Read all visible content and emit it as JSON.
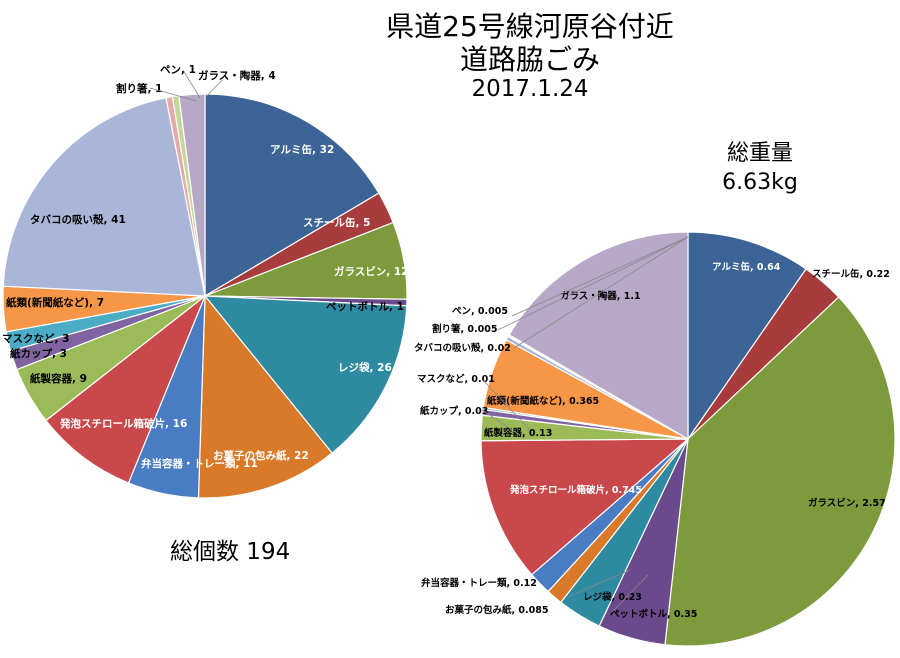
{
  "title": {
    "line1": "県道25号線河原谷付近",
    "line2": "道路脇ごみ",
    "date": "2017.1.24"
  },
  "total_count_label": "総個数 194",
  "total_weight": {
    "label": "総重量",
    "value": "6.63kg"
  },
  "chart_data": [
    {
      "type": "pie",
      "title": "総個数 194",
      "slices": [
        {
          "label": "アルミ缶",
          "value": 32,
          "color": "#3c6496",
          "text": "アルミ缶, 32"
        },
        {
          "label": "スチール缶",
          "value": 5,
          "color": "#a83c3c",
          "text": "スチール缶, 5"
        },
        {
          "label": "ガラスビン",
          "value": 12,
          "color": "#7d9a3c",
          "text": "ガラスビン, 12"
        },
        {
          "label": "ペットボトル",
          "value": 1,
          "color": "#6a4a8c",
          "text": "ペットボトル, 1"
        },
        {
          "label": "レジ袋",
          "value": 26,
          "color": "#2e8aa0",
          "text": "レジ袋, 26"
        },
        {
          "label": "お菓子の包み紙",
          "value": 22,
          "color": "#d97a2a",
          "text": "お菓子の包み紙, 22"
        },
        {
          "label": "弁当容器・トレー類",
          "value": 11,
          "color": "#4a7cc4",
          "text": "弁当容器・トレー類, 11"
        },
        {
          "label": "発泡スチロール箱破片",
          "value": 16,
          "color": "#c8484c",
          "text": "発泡スチロール箱破片, 16"
        },
        {
          "label": "紙製容器",
          "value": 9,
          "color": "#9bbb59",
          "text": "紙製容器, 9"
        },
        {
          "label": "紙カップ",
          "value": 3,
          "color": "#8064a2",
          "text": "紙カップ, 3"
        },
        {
          "label": "マスクなど",
          "value": 3,
          "color": "#4bacc6",
          "text": "マスクなど, 3"
        },
        {
          "label": "紙類(新聞紙など)",
          "value": 7,
          "color": "#f79646",
          "text": "紙類(新聞紙など), 7"
        },
        {
          "label": "タバコの吸い殻",
          "value": 41,
          "color": "#aab6d8",
          "text": "タバコの吸い殻, 41"
        },
        {
          "label": "割り箸",
          "value": 1,
          "color": "#e6a8a8",
          "text": "割り箸, 1"
        },
        {
          "label": "ペン",
          "value": 1,
          "color": "#c4d79b",
          "text": "ペン, 1"
        },
        {
          "label": "ガラス・陶器",
          "value": 4,
          "color": "#b7a8c8",
          "text": "ガラス・陶器, 4"
        }
      ]
    },
    {
      "type": "pie",
      "title": "総重量 6.63kg",
      "slices": [
        {
          "label": "アルミ缶",
          "value": 0.64,
          "color": "#3c6496",
          "text": "アルミ缶, 0.64"
        },
        {
          "label": "スチール缶",
          "value": 0.22,
          "color": "#a83c3c",
          "text": "スチール缶, 0.22"
        },
        {
          "label": "ガラスビン",
          "value": 2.57,
          "color": "#7d9a3c",
          "text": "ガラスビン, 2.57"
        },
        {
          "label": "ペットボトル",
          "value": 0.35,
          "color": "#6a4a8c",
          "text": "ペットボトル, 0.35"
        },
        {
          "label": "レジ袋",
          "value": 0.23,
          "color": "#2e8aa0",
          "text": "レジ袋, 0.23"
        },
        {
          "label": "お菓子の包み紙",
          "value": 0.085,
          "color": "#d97a2a",
          "text": "お菓子の包み紙, 0.085"
        },
        {
          "label": "弁当容器・トレー類",
          "value": 0.12,
          "color": "#4a7cc4",
          "text": "弁当容器・トレー類, 0.12"
        },
        {
          "label": "発泡スチロール箱破片",
          "value": 0.745,
          "color": "#c8484c",
          "text": "発泡スチロール箱破片, 0.745"
        },
        {
          "label": "紙製容器",
          "value": 0.13,
          "color": "#9bbb59",
          "text": "紙製容器, 0.13"
        },
        {
          "label": "紙カップ",
          "value": 0.03,
          "color": "#8064a2",
          "text": "紙カップ, 0.03"
        },
        {
          "label": "マスクなど",
          "value": 0.01,
          "color": "#4bacc6",
          "text": "マスクなど, 0.01"
        },
        {
          "label": "紙類(新聞紙など)",
          "value": 0.365,
          "color": "#f79646",
          "text": "紙類(新聞紙など), 0.365"
        },
        {
          "label": "タバコの吸い殻",
          "value": 0.02,
          "color": "#aab6d8",
          "text": "タバコの吸い殻, 0.02"
        },
        {
          "label": "割り箸",
          "value": 0.005,
          "color": "#e6a8a8",
          "text": "割り箸, 0.005"
        },
        {
          "label": "ペン",
          "value": 0.005,
          "color": "#c4d79b",
          "text": "ペン, 0.005"
        },
        {
          "label": "ガラス・陶器",
          "value": 1.1,
          "color": "#b7a8c8",
          "text": "ガラス・陶器, 1.1"
        }
      ]
    }
  ]
}
